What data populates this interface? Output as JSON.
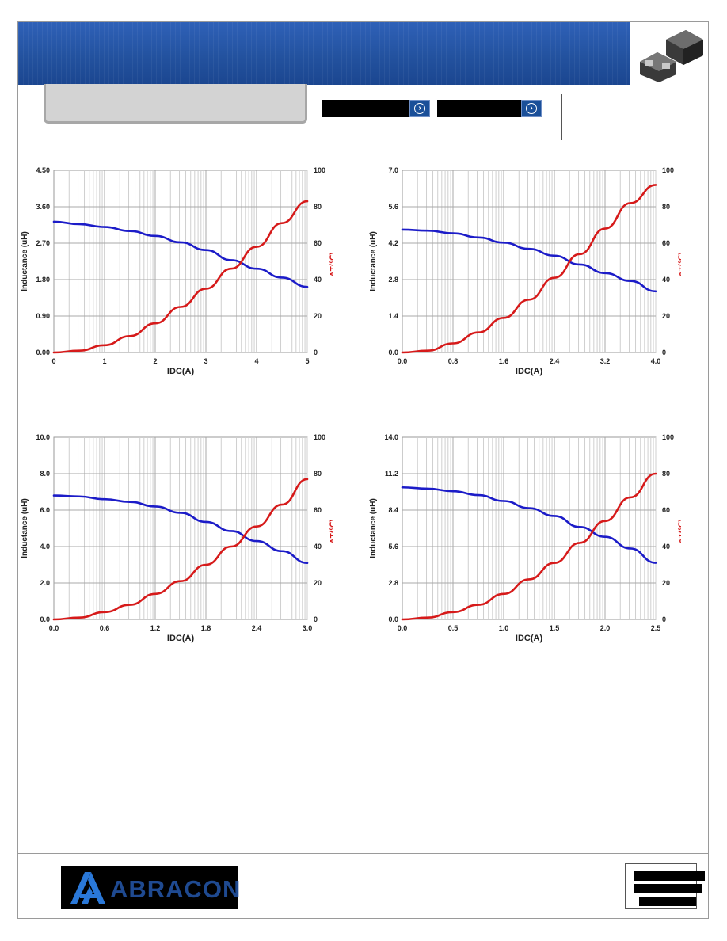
{
  "header": {
    "brand_color": "#23529f",
    "nav_buttons": [
      {
        "icon": "chevron-right-icon"
      },
      {
        "icon": "chevron-right-icon"
      }
    ]
  },
  "footer": {
    "logo_text": "ABRACON"
  },
  "chart_data": [
    {
      "type": "line",
      "xlabel": "IDC(A)",
      "ylabel": "Inductance  (uH)",
      "y2label": "ΔT(℃)",
      "x_ticks": [
        "0",
        "1",
        "2",
        "3",
        "4",
        "5"
      ],
      "y_ticks": [
        "0.00",
        "0.90",
        "1.80",
        "2.70",
        "3.60",
        "4.50"
      ],
      "y2_ticks": [
        "0",
        "20",
        "40",
        "60",
        "80",
        "100"
      ],
      "xlim": [
        0,
        5
      ],
      "ylim": [
        0,
        4.5
      ],
      "y2lim": [
        0,
        100
      ],
      "series": [
        {
          "axis": "left",
          "color": "#1c1cc8",
          "x": [
            0,
            0.5,
            1,
            1.5,
            2,
            2.5,
            3,
            3.5,
            4,
            4.5,
            5
          ],
          "values": [
            3.23,
            3.17,
            3.1,
            3.0,
            2.88,
            2.72,
            2.53,
            2.28,
            2.07,
            1.85,
            1.62
          ]
        },
        {
          "axis": "right",
          "color": "#d61a1a",
          "x": [
            0,
            0.5,
            1,
            1.5,
            2,
            2.5,
            3,
            3.5,
            4,
            4.5,
            5
          ],
          "values": [
            0,
            1,
            4,
            9,
            16,
            25,
            35,
            46,
            58,
            71,
            83
          ]
        }
      ]
    },
    {
      "type": "line",
      "xlabel": "IDC(A)",
      "ylabel": "Inductance  (uH)",
      "y2label": "ΔT(℃)",
      "x_ticks": [
        "0.0",
        "0.8",
        "1.6",
        "2.4",
        "3.2",
        "4.0"
      ],
      "y_ticks": [
        "0.0",
        "1.4",
        "2.8",
        "4.2",
        "5.6",
        "7.0"
      ],
      "y2_ticks": [
        "0",
        "20",
        "40",
        "60",
        "80",
        "100"
      ],
      "xlim": [
        0,
        4.0
      ],
      "ylim": [
        0,
        7.0
      ],
      "y2lim": [
        0,
        100
      ],
      "series": [
        {
          "axis": "left",
          "color": "#1c1cc8",
          "x": [
            0,
            0.4,
            0.8,
            1.2,
            1.6,
            2.0,
            2.4,
            2.8,
            3.2,
            3.6,
            4.0
          ],
          "values": [
            4.72,
            4.68,
            4.58,
            4.42,
            4.22,
            3.98,
            3.72,
            3.38,
            3.05,
            2.75,
            2.35
          ]
        },
        {
          "axis": "right",
          "color": "#d61a1a",
          "x": [
            0,
            0.4,
            0.8,
            1.2,
            1.6,
            2.0,
            2.4,
            2.8,
            3.2,
            3.6,
            4.0
          ],
          "values": [
            0,
            1,
            5,
            11,
            19,
            29,
            41,
            54,
            68,
            82,
            92
          ]
        }
      ]
    },
    {
      "type": "line",
      "xlabel": "IDC(A)",
      "ylabel": "Inductance  (uH)",
      "y2label": "ΔT(℃)",
      "x_ticks": [
        "0.0",
        "0.6",
        "1.2",
        "1.8",
        "2.4",
        "3.0"
      ],
      "y_ticks": [
        "0.0",
        "2.0",
        "4.0",
        "6.0",
        "8.0",
        "10.0"
      ],
      "y2_ticks": [
        "0",
        "20",
        "40",
        "60",
        "80",
        "100"
      ],
      "xlim": [
        0,
        3.0
      ],
      "ylim": [
        0,
        10.0
      ],
      "y2lim": [
        0,
        100
      ],
      "series": [
        {
          "axis": "left",
          "color": "#1c1cc8",
          "x": [
            0,
            0.3,
            0.6,
            0.9,
            1.2,
            1.5,
            1.8,
            2.1,
            2.4,
            2.7,
            3.0
          ],
          "values": [
            6.8,
            6.75,
            6.6,
            6.45,
            6.2,
            5.85,
            5.35,
            4.85,
            4.3,
            3.75,
            3.1
          ]
        },
        {
          "axis": "right",
          "color": "#d61a1a",
          "x": [
            0,
            0.3,
            0.6,
            0.9,
            1.2,
            1.5,
            1.8,
            2.1,
            2.4,
            2.7,
            3.0
          ],
          "values": [
            0,
            1,
            4,
            8,
            14,
            21,
            30,
            40,
            51,
            63,
            77
          ]
        }
      ]
    },
    {
      "type": "line",
      "xlabel": "IDC(A)",
      "ylabel": "Inductance  (uH)",
      "y2label": "ΔT(℃)",
      "x_ticks": [
        "0.0",
        "0.5",
        "1.0",
        "1.5",
        "2.0",
        "2.5"
      ],
      "y_ticks": [
        "0.0",
        "2.8",
        "5.6",
        "8.4",
        "11.2",
        "14.0"
      ],
      "y2_ticks": [
        "0",
        "20",
        "40",
        "60",
        "80",
        "100"
      ],
      "xlim": [
        0,
        2.5
      ],
      "ylim": [
        0,
        14.0
      ],
      "y2lim": [
        0,
        100
      ],
      "series": [
        {
          "axis": "left",
          "color": "#1c1cc8",
          "x": [
            0,
            0.25,
            0.5,
            0.75,
            1.0,
            1.25,
            1.5,
            1.75,
            2.0,
            2.25,
            2.5
          ],
          "values": [
            10.15,
            10.05,
            9.85,
            9.55,
            9.1,
            8.55,
            7.95,
            7.1,
            6.35,
            5.45,
            4.35
          ]
        },
        {
          "axis": "right",
          "color": "#d61a1a",
          "x": [
            0,
            0.25,
            0.5,
            0.75,
            1.0,
            1.25,
            1.5,
            1.75,
            2.0,
            2.25,
            2.5
          ],
          "values": [
            0,
            1,
            4,
            8,
            14,
            22,
            31,
            42,
            54,
            67,
            80
          ]
        }
      ]
    }
  ]
}
